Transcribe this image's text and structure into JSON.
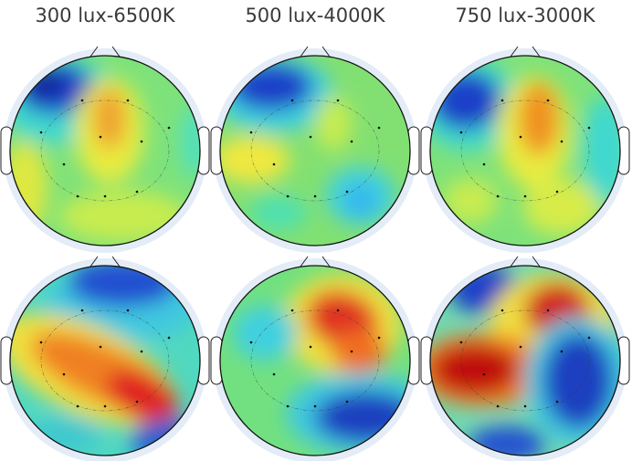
{
  "columns": [
    {
      "title": "300 lux-6500K"
    },
    {
      "title": "500 lux-4000K"
    },
    {
      "title": "750 lux-3000K"
    }
  ]
}
